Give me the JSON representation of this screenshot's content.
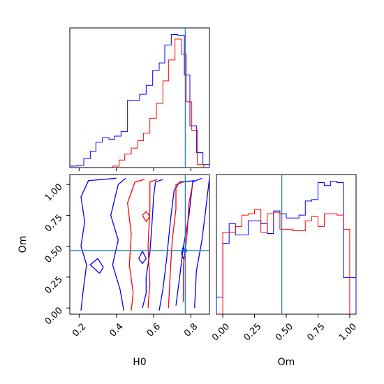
{
  "chart_data": {
    "type": "corner",
    "parameters": [
      "H0",
      "Om"
    ],
    "truth": {
      "H0": 0.77,
      "Om": 0.465
    },
    "colors": {
      "blue": "#0000ff",
      "red": "#ff0000",
      "truth": "#1f77b4"
    },
    "panels": [
      {
        "id": "hist-H0",
        "type": "histogram",
        "xlim": [
          0.15,
          0.9
        ],
        "xticks": [
          0.2,
          0.4,
          0.6,
          0.8
        ],
        "xtick_labels": [],
        "series": [
          {
            "color": "blue",
            "bins": [
              0.15,
              0.19,
              0.225,
              0.26,
              0.29,
              0.325,
              0.36,
              0.39,
              0.425,
              0.46,
              0.495,
              0.525,
              0.56,
              0.595,
              0.63,
              0.66,
              0.695,
              0.73,
              0.765,
              0.795,
              0.83,
              0.865,
              0.9
            ],
            "counts": [
              0.01,
              0.015,
              0.06,
              0.11,
              0.17,
              0.2,
              0.19,
              0.21,
              0.24,
              0.45,
              0.45,
              0.49,
              0.55,
              0.65,
              0.7,
              0.82,
              0.89,
              0.885,
              0.62,
              0.28,
              0.1,
              0.02
            ]
          },
          {
            "color": "red",
            "bins": [
              0.38,
              0.415,
              0.445,
              0.48,
              0.515,
              0.545,
              0.58,
              0.615,
              0.65,
              0.68,
              0.715,
              0.75,
              0.775,
              0.805,
              0.835,
              0.87
            ],
            "counts": [
              0.01,
              0.05,
              0.09,
              0.13,
              0.18,
              0.23,
              0.33,
              0.43,
              0.58,
              0.72,
              0.86,
              0.76,
              0.44,
              0.25,
              0.02
            ]
          }
        ]
      },
      {
        "id": "contour-H0-Om",
        "type": "contour",
        "xlim": [
          0.15,
          0.9
        ],
        "ylim": [
          -0.05,
          1.08
        ],
        "xticks": [
          0.2,
          0.4,
          0.6,
          0.8
        ],
        "xtick_labels": [
          "0.2",
          "0.4",
          "0.6",
          "0.8"
        ],
        "yticks": [
          0.0,
          0.25,
          0.5,
          0.75,
          1.0
        ],
        "ytick_labels": [
          "0.00",
          "0.25",
          "0.50",
          "0.75",
          "1.00"
        ],
        "xlabel": "H0",
        "ylabel": "Om",
        "series": [
          {
            "color": "blue",
            "contours": [
              [
                [
                  0.21,
                  -0.02
                ],
                [
                  0.22,
                  0.12
                ],
                [
                  0.24,
                  0.35
                ],
                [
                  0.21,
                  0.5
                ],
                [
                  0.23,
                  0.7
                ],
                [
                  0.21,
                  0.9
                ],
                [
                  0.25,
                  1.03
                ],
                [
                  0.4,
                  1.05
                ]
              ],
              [
                [
                  0.44,
                  -0.02
                ],
                [
                  0.42,
                  0.15
                ],
                [
                  0.38,
                  0.35
                ],
                [
                  0.41,
                  0.55
                ],
                [
                  0.37,
                  0.75
                ],
                [
                  0.41,
                  1.0
                ],
                [
                  0.45,
                  1.05
                ]
              ],
              [
                [
                  0.31,
                  0.28
                ],
                [
                  0.26,
                  0.35
                ],
                [
                  0.3,
                  0.4
                ],
                [
                  0.33,
                  0.33
                ],
                [
                  0.31,
                  0.28
                ]
              ],
              [
                [
                  0.54,
                  0.0
                ],
                [
                  0.56,
                  0.12
                ],
                [
                  0.56,
                  0.25
                ],
                [
                  0.58,
                  0.45
                ],
                [
                  0.59,
                  0.65
                ],
                [
                  0.6,
                  0.9
                ],
                [
                  0.61,
                  1.02
                ],
                [
                  0.65,
                  1.04
                ]
              ],
              [
                [
                  0.63,
                  -0.02
                ],
                [
                  0.65,
                  0.15
                ],
                [
                  0.67,
                  0.4
                ],
                [
                  0.69,
                  0.7
                ],
                [
                  0.71,
                  0.95
                ],
                [
                  0.74,
                  1.02
                ],
                [
                  0.82,
                  1.03
                ]
              ],
              [
                [
                  0.72,
                  0.02
                ],
                [
                  0.74,
                  0.25
                ],
                [
                  0.76,
                  0.5
                ],
                [
                  0.79,
                  0.75
                ],
                [
                  0.81,
                  1.02
                ],
                [
                  0.86,
                  1.05
                ]
              ],
              [
                [
                  0.82,
                  0.0
                ],
                [
                  0.83,
                  0.3
                ],
                [
                  0.86,
                  0.55
                ],
                [
                  0.88,
                  0.8
                ],
                [
                  0.9,
                  1.05
                ]
              ],
              [
                [
                  0.52,
                  0.4
                ],
                [
                  0.54,
                  0.46
                ],
                [
                  0.56,
                  0.4
                ],
                [
                  0.54,
                  0.36
                ],
                [
                  0.52,
                  0.4
                ]
              ],
              [
                [
                  0.75,
                  0.44
                ],
                [
                  0.76,
                  0.5
                ],
                [
                  0.77,
                  0.44
                ],
                [
                  0.76,
                  0.4
                ],
                [
                  0.75,
                  0.44
                ]
              ]
            ]
          },
          {
            "color": "red",
            "contours": [
              [
                [
                  0.48,
                  -0.02
                ],
                [
                  0.49,
                  0.12
                ],
                [
                  0.47,
                  0.35
                ],
                [
                  0.48,
                  0.6
                ],
                [
                  0.46,
                  0.85
                ],
                [
                  0.5,
                  1.02
                ],
                [
                  0.55,
                  1.04
                ]
              ],
              [
                [
                  0.57,
                  0.0
                ],
                [
                  0.58,
                  0.2
                ],
                [
                  0.57,
                  0.5
                ],
                [
                  0.58,
                  0.8
                ],
                [
                  0.58,
                  1.02
                ],
                [
                  0.62,
                  1.04
                ]
              ],
              [
                [
                  0.68,
                  0.0
                ],
                [
                  0.69,
                  0.3
                ],
                [
                  0.7,
                  0.55
                ],
                [
                  0.72,
                  0.8
                ],
                [
                  0.72,
                  1.0
                ],
                [
                  0.76,
                  1.02
                ]
              ],
              [
                [
                  0.76,
                  0.05
                ],
                [
                  0.76,
                  0.35
                ],
                [
                  0.78,
                  0.6
                ],
                [
                  0.79,
                  0.85
                ],
                [
                  0.81,
                  1.0
                ]
              ],
              [
                [
                  0.54,
                  0.75
                ],
                [
                  0.56,
                  0.78
                ],
                [
                  0.58,
                  0.74
                ],
                [
                  0.56,
                  0.7
                ],
                [
                  0.54,
                  0.75
                ]
              ]
            ]
          }
        ]
      },
      {
        "id": "hist-Om",
        "type": "histogram",
        "xlim": [
          -0.05,
          1.05
        ],
        "xticks": [
          0.0,
          0.25,
          0.5,
          0.75,
          1.0
        ],
        "xtick_labels": [
          "0.00",
          "0.25",
          "0.50",
          "0.75",
          "1.00"
        ],
        "xlabel": "Om",
        "series": [
          {
            "color": "blue",
            "bins": [
              -0.05,
              0.0,
              0.05,
              0.1,
              0.15,
              0.2,
              0.25,
              0.3,
              0.35,
              0.4,
              0.45,
              0.5,
              0.55,
              0.6,
              0.65,
              0.7,
              0.75,
              0.8,
              0.85,
              0.9,
              0.95,
              1.0,
              1.05
            ],
            "counts": [
              0.12,
              0.5,
              0.64,
              0.56,
              0.56,
              0.66,
              0.66,
              0.64,
              0.57,
              0.73,
              0.71,
              0.68,
              0.68,
              0.7,
              0.8,
              0.81,
              0.93,
              0.91,
              0.94,
              0.93,
              0.26,
              0.26
            ]
          },
          {
            "color": "red",
            "bins": [
              0.0,
              0.05,
              0.1,
              0.15,
              0.2,
              0.25,
              0.3,
              0.35,
              0.4,
              0.45,
              0.5,
              0.55,
              0.6,
              0.65,
              0.7,
              0.75,
              0.8,
              0.85,
              0.9,
              0.95,
              1.0
            ],
            "counts": [
              0.58,
              0.58,
              0.62,
              0.7,
              0.71,
              0.74,
              0.58,
              0.71,
              0.72,
              0.6,
              0.6,
              0.59,
              0.59,
              0.66,
              0.69,
              0.62,
              0.71,
              0.71,
              0.7,
              0.6
            ]
          }
        ]
      }
    ]
  }
}
